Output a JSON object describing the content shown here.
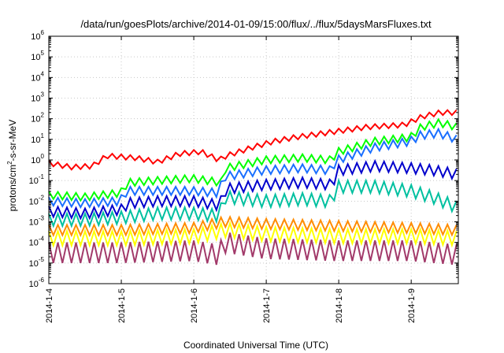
{
  "chart_data": {
    "type": "line",
    "title": "/data/run/goesPlots/archive/2014-01-09/15:00/flux/../flux/5daysMarsFluxes.txt",
    "xlabel": "Coordinated Universal Time (UTC)",
    "ylabel_parts": {
      "before": "protons/cm",
      "sup": "2",
      "after": "-s-sr-MeV"
    },
    "y_scale": "log",
    "ylim": [
      1e-06,
      1000000.0
    ],
    "y_ticks": [
      {
        "base": "10",
        "exp": "-6",
        "value": -6
      },
      {
        "base": "10",
        "exp": "-5",
        "value": -5
      },
      {
        "base": "10",
        "exp": "-4",
        "value": -4
      },
      {
        "base": "10",
        "exp": "-3",
        "value": -3
      },
      {
        "base": "10",
        "exp": "-2",
        "value": -2
      },
      {
        "base": "10",
        "exp": "-1",
        "value": -1
      },
      {
        "base": "10",
        "exp": "0",
        "value": 0
      },
      {
        "base": "10",
        "exp": "1",
        "value": 1
      },
      {
        "base": "10",
        "exp": "2",
        "value": 2
      },
      {
        "base": "10",
        "exp": "3",
        "value": 3
      },
      {
        "base": "10",
        "exp": "4",
        "value": 4
      },
      {
        "base": "10",
        "exp": "5",
        "value": 5
      },
      {
        "base": "10",
        "exp": "6",
        "value": 6
      }
    ],
    "x_unit": "days since 2014-1-4",
    "xlim": [
      0,
      5.65
    ],
    "x_ticks": [
      {
        "label": "2014-1-4",
        "value": 0
      },
      {
        "label": "2014-1-5",
        "value": 1
      },
      {
        "label": "2014-1-6",
        "value": 2
      },
      {
        "label": "2014-1-7",
        "value": 3
      },
      {
        "label": "2014-1-8",
        "value": 4
      },
      {
        "label": "2014-1-9",
        "value": 5
      }
    ],
    "grid": true,
    "legend": "none",
    "series": [
      {
        "color": "#ff0000",
        "osc": 0.12,
        "points": [
          [
            0,
            -0.15
          ],
          [
            0.3,
            -0.35
          ],
          [
            0.6,
            -0.3
          ],
          [
            0.8,
            0.2
          ],
          [
            1.2,
            0.1
          ],
          [
            1.5,
            -0.1
          ],
          [
            1.8,
            0.3
          ],
          [
            2.1,
            0.4
          ],
          [
            2.35,
            0.0
          ],
          [
            2.45,
            0.2
          ],
          [
            2.8,
            0.6
          ],
          [
            3.1,
            0.9
          ],
          [
            3.4,
            1.1
          ],
          [
            3.8,
            1.3
          ],
          [
            4.0,
            1.4
          ],
          [
            4.4,
            1.6
          ],
          [
            4.9,
            1.7
          ],
          [
            5.15,
            2.1
          ],
          [
            5.4,
            2.3
          ],
          [
            5.65,
            2.3
          ]
        ]
      },
      {
        "color": "#00ff00",
        "osc": 0.18,
        "points": [
          [
            0,
            -1.7
          ],
          [
            0.5,
            -1.8
          ],
          [
            1.0,
            -1.6
          ],
          [
            1.1,
            -1.1
          ],
          [
            1.5,
            -1.0
          ],
          [
            2.0,
            -0.9
          ],
          [
            2.4,
            -1.1
          ],
          [
            2.45,
            -0.4
          ],
          [
            3.0,
            0.0
          ],
          [
            3.5,
            0.1
          ],
          [
            3.9,
            0.0
          ],
          [
            4.0,
            0.4
          ],
          [
            4.5,
            0.9
          ],
          [
            5.0,
            1.1
          ],
          [
            5.15,
            1.6
          ],
          [
            5.4,
            1.8
          ],
          [
            5.65,
            1.6
          ]
        ]
      },
      {
        "color": "#1a6fff",
        "osc": 0.2,
        "points": [
          [
            0,
            -2.0
          ],
          [
            0.5,
            -2.1
          ],
          [
            1.0,
            -2.0
          ],
          [
            1.1,
            -1.5
          ],
          [
            1.5,
            -1.5
          ],
          [
            2.0,
            -1.5
          ],
          [
            2.35,
            -1.6
          ],
          [
            2.45,
            -0.8
          ],
          [
            3.0,
            -0.5
          ],
          [
            3.5,
            -0.4
          ],
          [
            3.9,
            -0.5
          ],
          [
            4.0,
            0.0
          ],
          [
            4.5,
            0.6
          ],
          [
            5.0,
            0.9
          ],
          [
            5.15,
            1.2
          ],
          [
            5.4,
            1.3
          ],
          [
            5.65,
            1.0
          ]
        ]
      },
      {
        "color": "#0000cc",
        "osc": 0.25,
        "points": [
          [
            0,
            -2.5
          ],
          [
            0.5,
            -2.6
          ],
          [
            1.0,
            -2.4
          ],
          [
            1.1,
            -2.1
          ],
          [
            1.5,
            -2.0
          ],
          [
            2.0,
            -2.0
          ],
          [
            2.35,
            -2.2
          ],
          [
            2.45,
            -1.4
          ],
          [
            3.0,
            -1.2
          ],
          [
            3.5,
            -1.1
          ],
          [
            3.9,
            -1.2
          ],
          [
            4.0,
            -0.5
          ],
          [
            4.5,
            -0.3
          ],
          [
            5.0,
            -0.4
          ],
          [
            5.3,
            -0.5
          ],
          [
            5.65,
            -0.7
          ]
        ]
      },
      {
        "color": "#00c0a0",
        "osc": 0.3,
        "points": [
          [
            0,
            -2.9
          ],
          [
            0.5,
            -2.9
          ],
          [
            1.0,
            -2.8
          ],
          [
            1.5,
            -2.6
          ],
          [
            2.0,
            -2.6
          ],
          [
            2.35,
            -2.7
          ],
          [
            2.45,
            -1.8
          ],
          [
            3.0,
            -2.0
          ],
          [
            3.5,
            -1.9
          ],
          [
            3.9,
            -2.0
          ],
          [
            4.0,
            -1.3
          ],
          [
            4.5,
            -1.3
          ],
          [
            5.0,
            -1.5
          ],
          [
            5.3,
            -1.8
          ],
          [
            5.65,
            -2.3
          ]
        ]
      },
      {
        "color": "#ff8c00",
        "osc": 0.25,
        "points": [
          [
            0,
            -3.4
          ],
          [
            1.0,
            -3.4
          ],
          [
            2.0,
            -3.3
          ],
          [
            2.45,
            -3.0
          ],
          [
            3.0,
            -3.1
          ],
          [
            4.0,
            -3.2
          ],
          [
            5.0,
            -3.3
          ],
          [
            5.65,
            -3.4
          ]
        ]
      },
      {
        "color": "#ffff00",
        "osc": 0.35,
        "points": [
          [
            0,
            -3.8
          ],
          [
            1.0,
            -3.8
          ],
          [
            2.0,
            -3.7
          ],
          [
            2.45,
            -3.4
          ],
          [
            3.0,
            -3.6
          ],
          [
            4.0,
            -3.7
          ],
          [
            5.0,
            -3.7
          ],
          [
            5.65,
            -3.8
          ]
        ]
      },
      {
        "color": "#a23a6a",
        "osc": 0.5,
        "points": [
          [
            0,
            -4.5
          ],
          [
            1.0,
            -4.5
          ],
          [
            2.0,
            -4.4
          ],
          [
            2.35,
            -4.6
          ],
          [
            2.45,
            -4.0
          ],
          [
            3.0,
            -4.3
          ],
          [
            4.0,
            -4.4
          ],
          [
            5.0,
            -4.4
          ],
          [
            5.65,
            -4.6
          ]
        ]
      }
    ]
  }
}
